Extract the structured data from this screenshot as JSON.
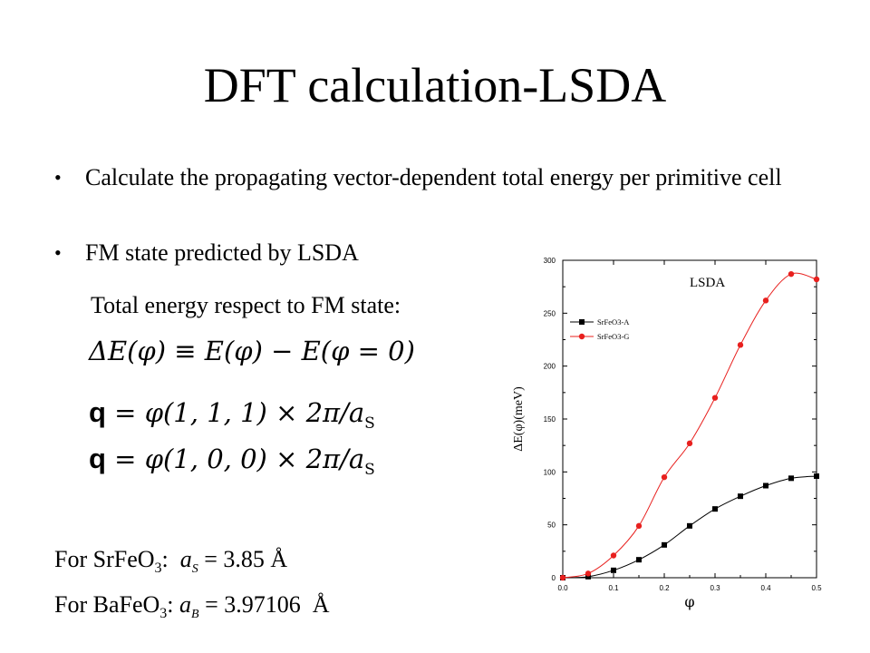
{
  "slide": {
    "title": "DFT calculation-LSDA",
    "bullets": [
      "Calculate the propagating vector-dependent total energy per primitive cell",
      "FM state predicted by LSDA"
    ],
    "subtext": "Total energy respect to FM state:",
    "equations": {
      "delta_e": {
        "lhs": "ΔE(φ)",
        "op": "≡",
        "rhs": "E(φ) − E(φ = 0)"
      },
      "q1": {
        "q": "q",
        "eq": "=",
        "expr": "φ(1, 1, 1) × 2π/a",
        "sub": "S"
      },
      "q2": {
        "q": "q",
        "eq": "=",
        "expr": "φ(1, 0, 0) × 2π/a",
        "sub": "S"
      }
    },
    "srfeo3": {
      "prefix": "For SrFeO",
      "sub": "3",
      "colon": ":",
      "symbol": "a",
      "symbol_sub": "S",
      "value": "= 3.85",
      "unit": "Å"
    },
    "bafeo3": {
      "prefix": "For BaFeO",
      "sub": "3",
      "colon": ":",
      "symbol": "a",
      "symbol_sub": "B",
      "value": "= 3.97106",
      "unit": "Å"
    }
  },
  "chart_data": {
    "type": "line",
    "title": "LSDA",
    "xlabel": "φ",
    "ylabel": "ΔE(φ)(meV)",
    "xlim": [
      0.0,
      0.5
    ],
    "ylim": [
      0,
      300
    ],
    "xticks": [
      "0.0",
      "0.1",
      "0.2",
      "0.3",
      "0.4",
      "0.5"
    ],
    "yticks": [
      "0",
      "50",
      "100",
      "150",
      "200",
      "250",
      "300"
    ],
    "legend_position": "top-left",
    "series": [
      {
        "name": "SrFeO3-A",
        "color": "#000000",
        "marker": "square",
        "x": [
          0.0,
          0.05,
          0.1,
          0.15,
          0.2,
          0.25,
          0.3,
          0.35,
          0.4,
          0.45,
          0.5
        ],
        "y": [
          0,
          1,
          7,
          17,
          31,
          49,
          65,
          77,
          87,
          94,
          96
        ]
      },
      {
        "name": "SrFeO3-G",
        "color": "#e8201e",
        "marker": "circle",
        "x": [
          0.0,
          0.05,
          0.1,
          0.15,
          0.2,
          0.25,
          0.3,
          0.35,
          0.4,
          0.45,
          0.5
        ],
        "y": [
          0,
          4,
          21,
          49,
          95,
          127,
          170,
          220,
          262,
          287,
          282
        ]
      }
    ]
  }
}
